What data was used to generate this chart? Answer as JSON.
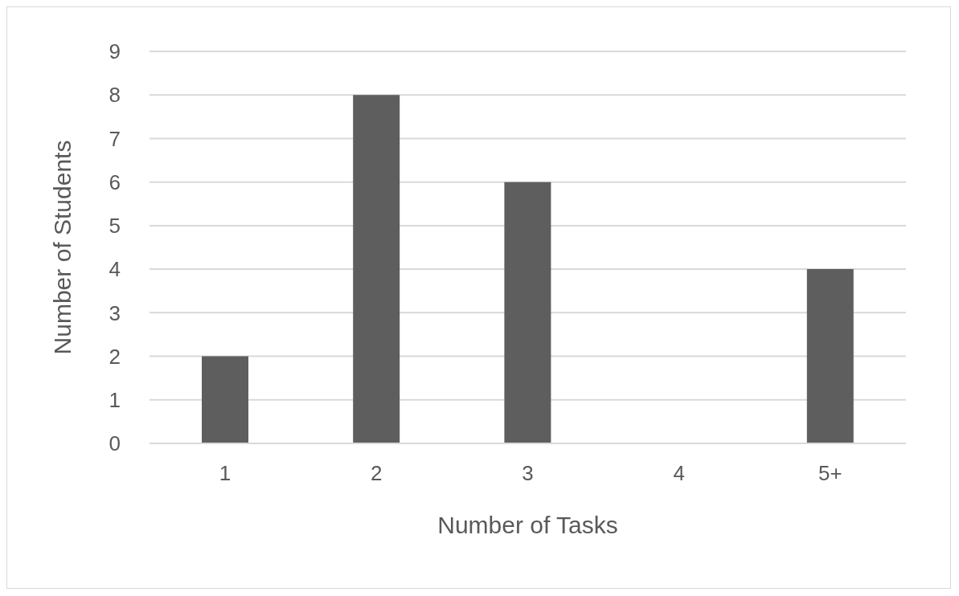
{
  "chart_data": {
    "type": "bar",
    "xlabel": "Number of Tasks",
    "ylabel": "Number of Students",
    "categories": [
      "1",
      "2",
      "3",
      "4",
      "5+"
    ],
    "values": [
      2,
      8,
      6,
      0,
      4
    ],
    "color": "#5e5e5e",
    "ylim": [
      0,
      9
    ],
    "yticks": [
      0,
      1,
      2,
      3,
      4,
      5,
      6,
      7,
      8,
      9
    ],
    "grid": "y"
  }
}
